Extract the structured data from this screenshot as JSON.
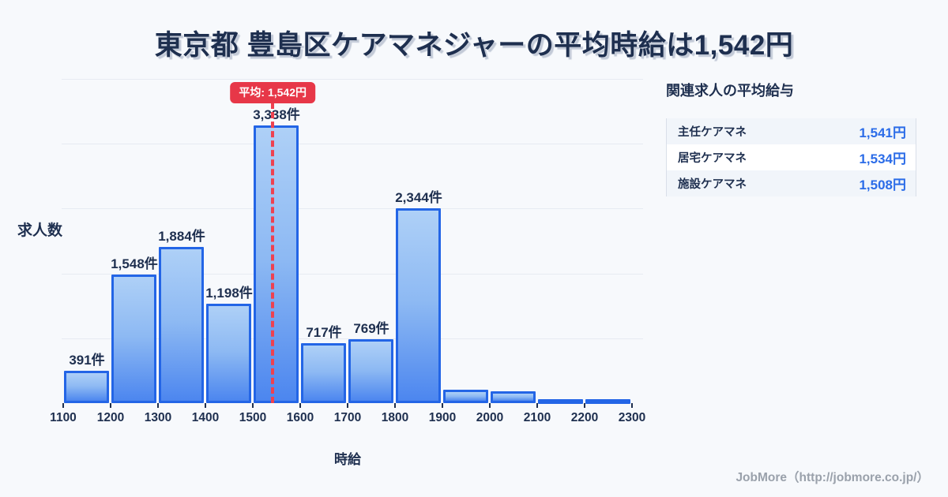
{
  "title": "東京都 豊島区ケアマネジャーの平均時給は1,542円",
  "chart_data": {
    "type": "bar",
    "title": "東京都 豊島区ケアマネジャーの平均時給は1,542円",
    "xlabel": "時給",
    "ylabel": "求人数",
    "x_tick_labels": [
      "1100",
      "1200",
      "1300",
      "1400",
      "1500",
      "1600",
      "1700",
      "1800",
      "1900",
      "2000",
      "2100",
      "2200",
      "2300"
    ],
    "bin_edges": [
      1100,
      1200,
      1300,
      1400,
      1500,
      1600,
      1700,
      1800,
      1900,
      2000,
      2100,
      2200,
      2300
    ],
    "values": [
      391,
      1548,
      1884,
      1198,
      3338,
      717,
      769,
      2344,
      160,
      140,
      50,
      50
    ],
    "bar_labels": [
      "391件",
      "1,548件",
      "1,884件",
      "1,198件",
      "3,338件",
      "717件",
      "769件",
      "2,344件",
      "",
      "",
      "",
      ""
    ],
    "ylim": [
      0,
      3900
    ],
    "gridline_step": 780,
    "grid": true,
    "legend": "none",
    "annotation": {
      "label": "平均: 1,542円",
      "x_value": 1542
    }
  },
  "side_panel": {
    "heading": "関連求人の平均給与",
    "rows": [
      {
        "label": "主任ケアマネ",
        "value": "1,541円"
      },
      {
        "label": "居宅ケアマネ",
        "value": "1,534円"
      },
      {
        "label": "施設ケアマネ",
        "value": "1,508円"
      }
    ]
  },
  "footer": {
    "credit": "JobMore（http://jobmore.co.jp/）"
  },
  "colors": {
    "background": "#f7f9fc",
    "navy_text": "#1e2f4f",
    "bar_border": "#2365e6",
    "bar_gradient_top": "#aed0f7",
    "bar_gradient_bottom": "#4c86ef",
    "gridline": "#e7ebf2",
    "average_badge_red": "#e73748",
    "average_line_red": "#ee4150",
    "value_blue": "#2b6ce8",
    "footer_gray": "#9aa1ab"
  }
}
